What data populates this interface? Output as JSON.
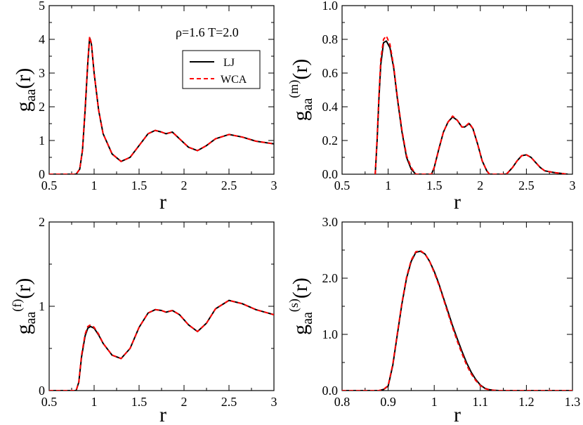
{
  "chart_data": [
    {
      "type": "line",
      "id": "gaa",
      "xlabel": "r",
      "ylabel": {
        "main": "g",
        "sub": "aa",
        "sup": "",
        "tail": "(r)"
      },
      "xlim": [
        0.5,
        3
      ],
      "ylim": [
        0,
        5
      ],
      "xticks": [
        0.5,
        1,
        1.5,
        2,
        2.5,
        3
      ],
      "xtick_labels": [
        "0.5",
        "1",
        "1.5",
        "2",
        "2.5",
        "3"
      ],
      "yticks": [
        0,
        1,
        2,
        3,
        4,
        5
      ],
      "ytick_labels": [
        "0",
        "1",
        "2",
        "3",
        "4",
        "5"
      ],
      "annotation": "ρ=1.6   T=2.0",
      "legend": [
        {
          "label": "LJ",
          "color": "#000000",
          "dash": "solid"
        },
        {
          "label": "WCA",
          "color": "#ff0000",
          "dash": "dashed"
        }
      ],
      "series": [
        {
          "name": "LJ",
          "color": "#000000",
          "x": [
            0.5,
            0.8,
            0.84,
            0.87,
            0.9,
            0.93,
            0.95,
            0.97,
            1.0,
            1.05,
            1.1,
            1.2,
            1.3,
            1.4,
            1.5,
            1.6,
            1.68,
            1.75,
            1.8,
            1.87,
            1.95,
            2.05,
            2.15,
            2.25,
            2.35,
            2.5,
            2.65,
            2.8,
            3.0
          ],
          "y": [
            0,
            0,
            0.15,
            0.7,
            1.9,
            3.3,
            4.05,
            3.85,
            3.0,
            1.9,
            1.2,
            0.6,
            0.38,
            0.5,
            0.85,
            1.2,
            1.3,
            1.25,
            1.2,
            1.25,
            1.05,
            0.8,
            0.7,
            0.85,
            1.05,
            1.18,
            1.1,
            0.98,
            0.9
          ]
        },
        {
          "name": "WCA",
          "color": "#ff0000",
          "x": [
            0.5,
            0.8,
            0.84,
            0.87,
            0.9,
            0.93,
            0.95,
            0.97,
            1.0,
            1.05,
            1.1,
            1.2,
            1.3,
            1.4,
            1.5,
            1.6,
            1.68,
            1.75,
            1.8,
            1.87,
            1.95,
            2.05,
            2.15,
            2.25,
            2.35,
            2.5,
            2.65,
            2.8,
            3.0
          ],
          "y": [
            0,
            0,
            0.15,
            0.72,
            1.95,
            3.35,
            4.08,
            3.88,
            3.0,
            1.9,
            1.2,
            0.6,
            0.38,
            0.5,
            0.85,
            1.2,
            1.3,
            1.25,
            1.2,
            1.25,
            1.05,
            0.8,
            0.7,
            0.85,
            1.05,
            1.18,
            1.1,
            0.98,
            0.9
          ]
        }
      ]
    },
    {
      "type": "line",
      "id": "gaa_m",
      "xlabel": "r",
      "ylabel": {
        "main": "g",
        "sub": "aa",
        "sup": "(m)",
        "tail": "(r)"
      },
      "xlim": [
        0.5,
        3
      ],
      "ylim": [
        0,
        1.0
      ],
      "xticks": [
        0.5,
        1,
        1.5,
        2,
        2.5,
        3
      ],
      "xtick_labels": [
        "0.5",
        "1",
        "1.5",
        "2",
        "2.5",
        "3"
      ],
      "yticks": [
        0,
        0.2,
        0.4,
        0.6,
        0.8,
        1.0
      ],
      "ytick_labels": [
        "0.0",
        "0.2",
        "0.4",
        "0.6",
        "0.8",
        "1.0"
      ],
      "series": [
        {
          "name": "LJ",
          "color": "#000000",
          "x": [
            0.86,
            0.88,
            0.9,
            0.92,
            0.95,
            0.98,
            1.02,
            1.06,
            1.1,
            1.15,
            1.2,
            1.25,
            1.3,
            1.47,
            1.5,
            1.55,
            1.6,
            1.65,
            1.7,
            1.75,
            1.8,
            1.83,
            1.88,
            1.92,
            1.97,
            2.02,
            2.07,
            2.1,
            2.28,
            2.3,
            2.35,
            2.4,
            2.45,
            2.5,
            2.55,
            2.6,
            2.65,
            2.7,
            2.8,
            2.9,
            2.95
          ],
          "y": [
            0,
            0.2,
            0.45,
            0.65,
            0.78,
            0.79,
            0.75,
            0.63,
            0.45,
            0.25,
            0.1,
            0.03,
            0,
            0,
            0.04,
            0.15,
            0.25,
            0.31,
            0.34,
            0.32,
            0.28,
            0.28,
            0.3,
            0.27,
            0.18,
            0.08,
            0.02,
            0,
            0,
            0.01,
            0.04,
            0.08,
            0.11,
            0.115,
            0.1,
            0.07,
            0.04,
            0.02,
            0.01,
            0.003,
            0
          ]
        },
        {
          "name": "WCA",
          "color": "#ff0000",
          "x": [
            0.86,
            0.88,
            0.9,
            0.92,
            0.95,
            0.98,
            1.02,
            1.06,
            1.1,
            1.15,
            1.2,
            1.25,
            1.3,
            1.47,
            1.5,
            1.55,
            1.6,
            1.65,
            1.7,
            1.75,
            1.8,
            1.83,
            1.88,
            1.92,
            1.97,
            2.02,
            2.07,
            2.1,
            2.28,
            2.3,
            2.35,
            2.4,
            2.45,
            2.5,
            2.55,
            2.6,
            2.65,
            2.7,
            2.8,
            2.9,
            2.95
          ],
          "y": [
            0,
            0.22,
            0.47,
            0.68,
            0.8,
            0.82,
            0.77,
            0.64,
            0.46,
            0.26,
            0.11,
            0.04,
            0,
            0,
            0.04,
            0.15,
            0.25,
            0.31,
            0.345,
            0.32,
            0.28,
            0.28,
            0.305,
            0.27,
            0.18,
            0.08,
            0.02,
            0,
            0,
            0.01,
            0.04,
            0.08,
            0.11,
            0.115,
            0.1,
            0.07,
            0.04,
            0.02,
            0.01,
            0.003,
            0
          ]
        }
      ]
    },
    {
      "type": "line",
      "id": "gaa_f",
      "xlabel": "r",
      "ylabel": {
        "main": "g",
        "sub": "aa",
        "sup": "(f)",
        "tail": "(r)"
      },
      "xlim": [
        0.5,
        3
      ],
      "ylim": [
        0,
        2
      ],
      "xticks": [
        0.5,
        1,
        1.5,
        2,
        2.5,
        3
      ],
      "xtick_labels": [
        "0.5",
        "1",
        "1.5",
        "2",
        "2.5",
        "3"
      ],
      "yticks": [
        0,
        1,
        2
      ],
      "ytick_labels": [
        "0",
        "1",
        "2"
      ],
      "series": [
        {
          "name": "LJ",
          "color": "#000000",
          "x": [
            0.5,
            0.8,
            0.83,
            0.86,
            0.9,
            0.93,
            0.96,
            1.0,
            1.05,
            1.1,
            1.2,
            1.3,
            1.4,
            1.5,
            1.6,
            1.68,
            1.75,
            1.8,
            1.87,
            1.95,
            2.05,
            2.15,
            2.25,
            2.35,
            2.5,
            2.65,
            2.8,
            3.0
          ],
          "y": [
            0,
            0,
            0.1,
            0.4,
            0.65,
            0.74,
            0.76,
            0.74,
            0.66,
            0.56,
            0.42,
            0.38,
            0.5,
            0.75,
            0.92,
            0.96,
            0.95,
            0.93,
            0.95,
            0.9,
            0.78,
            0.7,
            0.8,
            0.97,
            1.07,
            1.03,
            0.96,
            0.9
          ]
        },
        {
          "name": "WCA",
          "color": "#ff0000",
          "x": [
            0.5,
            0.8,
            0.83,
            0.86,
            0.9,
            0.93,
            0.96,
            1.0,
            1.05,
            1.1,
            1.2,
            1.3,
            1.4,
            1.5,
            1.6,
            1.68,
            1.75,
            1.8,
            1.87,
            1.95,
            2.05,
            2.15,
            2.25,
            2.35,
            2.5,
            2.65,
            2.8,
            3.0
          ],
          "y": [
            0,
            0,
            0.1,
            0.42,
            0.67,
            0.76,
            0.78,
            0.75,
            0.67,
            0.56,
            0.42,
            0.38,
            0.5,
            0.75,
            0.92,
            0.96,
            0.95,
            0.93,
            0.95,
            0.9,
            0.78,
            0.7,
            0.8,
            0.97,
            1.07,
            1.03,
            0.96,
            0.9
          ]
        }
      ]
    },
    {
      "type": "line",
      "id": "gaa_s",
      "xlabel": "r",
      "ylabel": {
        "main": "g",
        "sub": "aa",
        "sup": "(s)",
        "tail": "(r)"
      },
      "xlim": [
        0.8,
        1.3
      ],
      "ylim": [
        0,
        3.0
      ],
      "xticks": [
        0.8,
        0.9,
        1.0,
        1.1,
        1.2,
        1.3
      ],
      "xtick_labels": [
        "0.8",
        "0.9",
        "1",
        "1.1",
        "1.2",
        "1.3"
      ],
      "yticks": [
        0,
        1,
        2,
        3
      ],
      "ytick_labels": [
        "0.0",
        "1.0",
        "2.0",
        "3.0"
      ],
      "series": [
        {
          "name": "LJ",
          "color": "#000000",
          "x": [
            0.8,
            0.88,
            0.89,
            0.9,
            0.91,
            0.92,
            0.93,
            0.94,
            0.95,
            0.96,
            0.97,
            0.98,
            0.99,
            1.0,
            1.01,
            1.02,
            1.03,
            1.04,
            1.05,
            1.06,
            1.07,
            1.08,
            1.09,
            1.1,
            1.11,
            1.12,
            1.13,
            1.14,
            1.3
          ],
          "y": [
            0,
            0,
            0.02,
            0.08,
            0.45,
            1.0,
            1.55,
            2.0,
            2.3,
            2.46,
            2.48,
            2.43,
            2.3,
            2.12,
            1.9,
            1.65,
            1.4,
            1.15,
            0.92,
            0.7,
            0.5,
            0.33,
            0.2,
            0.1,
            0.04,
            0.015,
            0.005,
            0,
            0
          ]
        },
        {
          "name": "WCA",
          "color": "#ff0000",
          "x": [
            0.8,
            0.88,
            0.89,
            0.9,
            0.91,
            0.92,
            0.93,
            0.94,
            0.95,
            0.96,
            0.97,
            0.98,
            0.99,
            1.0,
            1.01,
            1.02,
            1.03,
            1.04,
            1.05,
            1.06,
            1.07,
            1.08,
            1.09,
            1.1,
            1.11,
            1.12,
            1.13,
            1.14,
            1.3
          ],
          "y": [
            0,
            0,
            0.02,
            0.09,
            0.47,
            1.02,
            1.57,
            2.02,
            2.32,
            2.47,
            2.49,
            2.43,
            2.3,
            2.1,
            1.88,
            1.63,
            1.37,
            1.12,
            0.88,
            0.66,
            0.46,
            0.3,
            0.18,
            0.09,
            0.035,
            0.012,
            0.004,
            0,
            0
          ]
        }
      ]
    }
  ]
}
